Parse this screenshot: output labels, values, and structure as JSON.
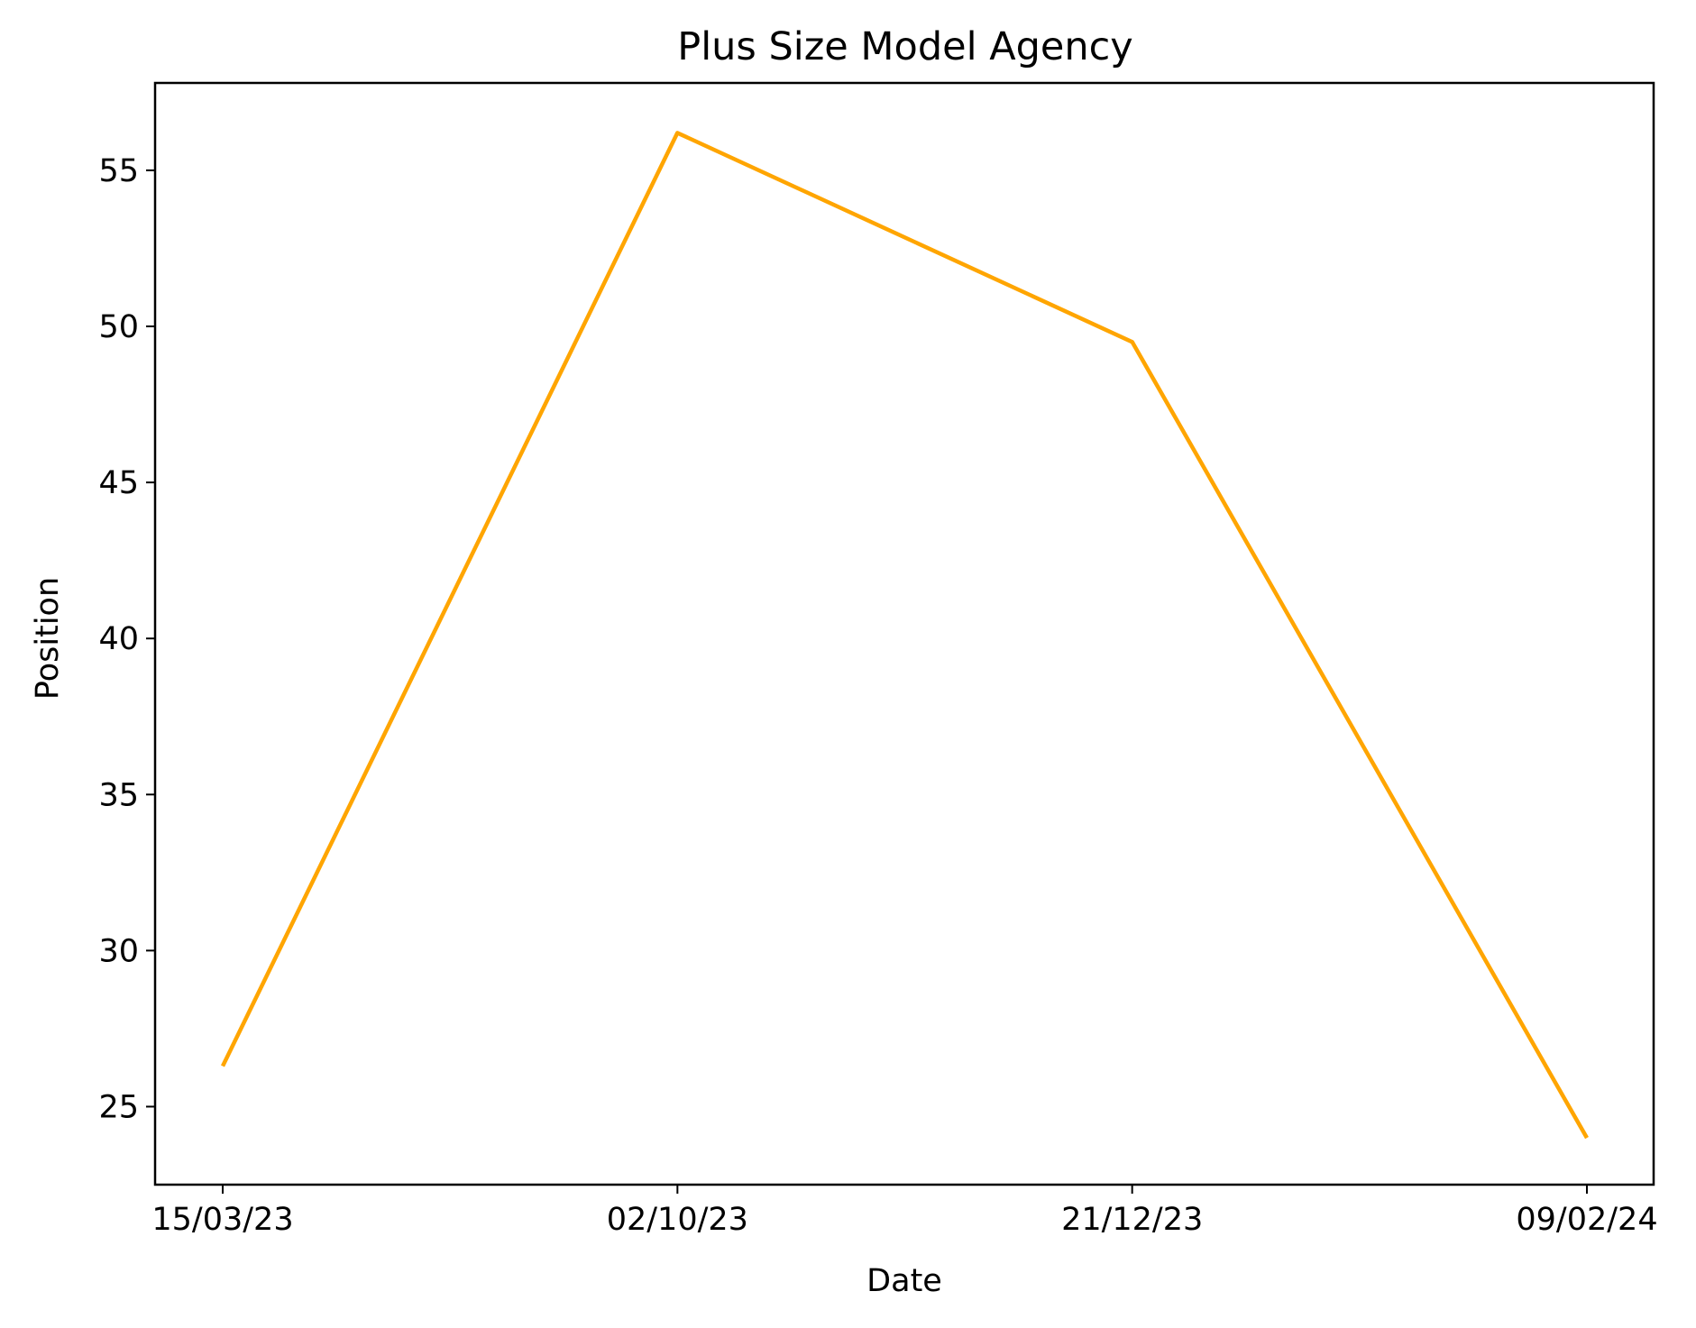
{
  "chart_data": {
    "type": "line",
    "title": "Plus Size Model Agency",
    "xlabel": "Date",
    "ylabel": "Position",
    "categories": [
      "15/03/23",
      "02/10/23",
      "21/12/23",
      "09/02/24"
    ],
    "series": [
      {
        "values": [
          26.3,
          56.2,
          49.5,
          24.0
        ],
        "color": "#FFA500"
      }
    ],
    "yticks": [
      25,
      30,
      35,
      40,
      45,
      50,
      55
    ],
    "ylim": [
      22.5,
      57.8
    ],
    "grid": false,
    "legend": "none"
  }
}
